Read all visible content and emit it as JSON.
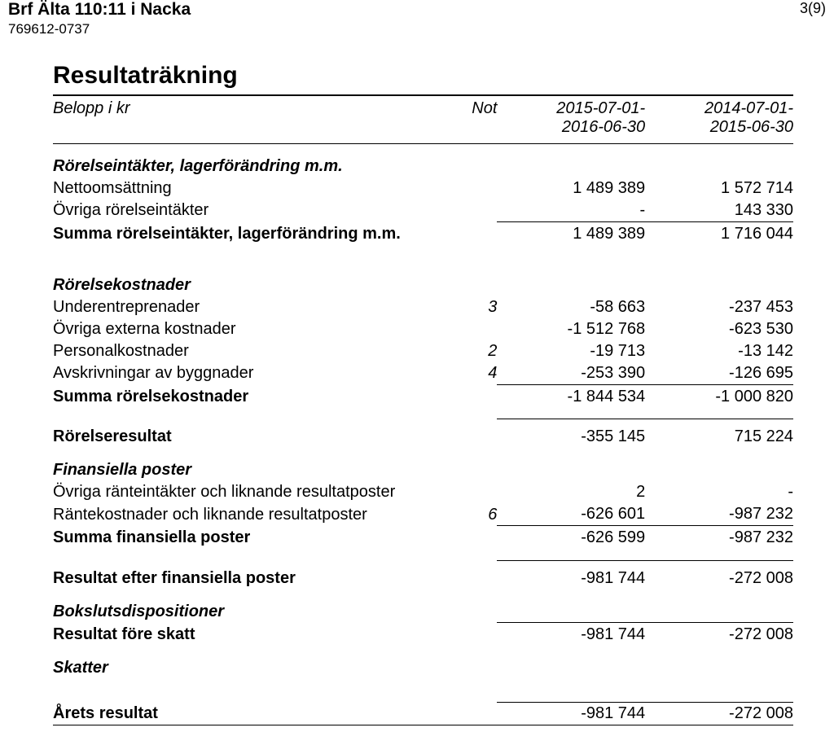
{
  "header": {
    "org_name": "Brf Älta 110:11 i Nacka",
    "org_num": "769612-0737",
    "page_num": "3(9)"
  },
  "title": "Resultaträkning",
  "col_headers": {
    "label": "Belopp i kr",
    "not": "Not",
    "p1a": "2015-07-01-",
    "p1b": "2016-06-30",
    "p2a": "2014-07-01-",
    "p2b": "2015-06-30"
  },
  "s1": {
    "heading": "Rörelseintäkter, lagerförändring m.m.",
    "r1": {
      "label": "Nettoomsättning",
      "c1": "1 489 389",
      "c2": "1 572 714"
    },
    "r2": {
      "label": "Övriga rörelseintäkter",
      "c1": "-",
      "c2": "143 330"
    },
    "sum": {
      "label": "Summa rörelseintäkter, lagerförändring m.m.",
      "c1": "1 489 389",
      "c2": "1 716 044"
    }
  },
  "s2": {
    "heading": "Rörelsekostnader",
    "r1": {
      "label": "Underentreprenader",
      "not": "3",
      "c1": "-58 663",
      "c2": "-237 453"
    },
    "r2": {
      "label": "Övriga externa kostnader",
      "c1": "-1 512 768",
      "c2": "-623 530"
    },
    "r3": {
      "label": "Personalkostnader",
      "not": "2",
      "c1": "-19 713",
      "c2": "-13 142"
    },
    "r4": {
      "label": "Avskrivningar av byggnader",
      "not": "4",
      "c1": "-253 390",
      "c2": "-126 695"
    },
    "sum": {
      "label": "Summa rörelsekostnader",
      "c1": "-1 844 534",
      "c2": "-1 000 820"
    }
  },
  "opres": {
    "label": "Rörelseresultat",
    "c1": "-355 145",
    "c2": "715 224"
  },
  "s3": {
    "heading": "Finansiella poster",
    "r1": {
      "label": "Övriga ränteintäkter och liknande resultatposter",
      "c1": "2",
      "c2": "-"
    },
    "r2": {
      "label": "Räntekostnader och liknande resultatposter",
      "not": "6",
      "c1": "-626 601",
      "c2": "-987 232"
    },
    "sum": {
      "label": "Summa finansiella poster",
      "c1": "-626 599",
      "c2": "-987 232"
    }
  },
  "resfin": {
    "label": "Resultat efter finansiella poster",
    "c1": "-981 744",
    "c2": "-272 008"
  },
  "boks": {
    "heading": "Bokslutsdispositioner"
  },
  "resskatt": {
    "label": "Resultat före skatt",
    "c1": "-981 744",
    "c2": "-272 008"
  },
  "skatter": {
    "heading": "Skatter"
  },
  "arets": {
    "label": "Årets resultat",
    "c1": "-981 744",
    "c2": "-272 008"
  }
}
